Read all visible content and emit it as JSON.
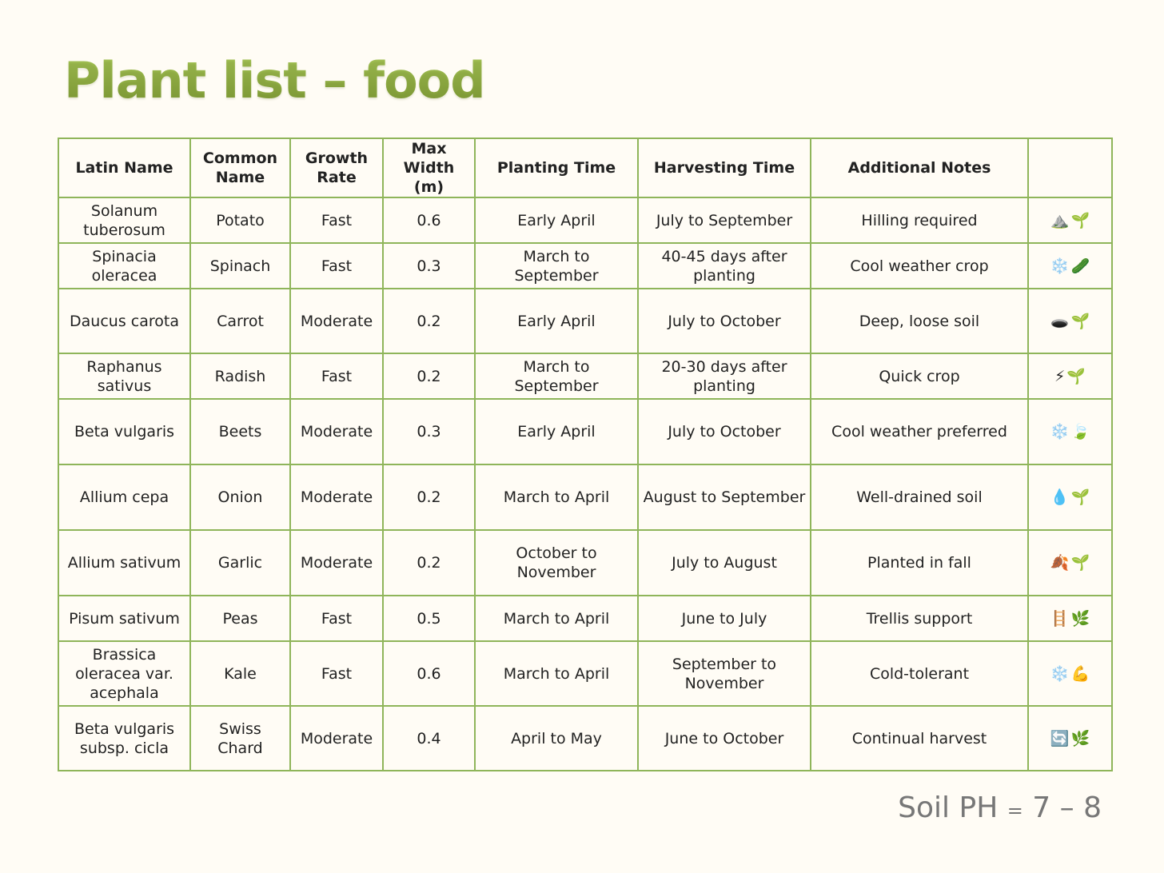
{
  "title": "Plant list – food",
  "headers": [
    {
      "line1": "Latin Name",
      "line2": ""
    },
    {
      "line1": "Common",
      "line2": "Name"
    },
    {
      "line1": "Growth",
      "line2": "Rate"
    },
    {
      "line1": "Max Width",
      "line2": "(m)"
    },
    {
      "line1": "Planting Time",
      "line2": ""
    },
    {
      "line1": "Harvesting Time",
      "line2": ""
    },
    {
      "line1": "Additional Notes",
      "line2": ""
    },
    {
      "line1": "",
      "line2": ""
    }
  ],
  "rows": [
    {
      "latin": "Solanum tuberosum",
      "common": "Potato",
      "growth": "Fast",
      "width": "0.6",
      "planting": "Early April",
      "harvesting": "July to September",
      "notes": "Hilling required",
      "icons": [
        "⛰️",
        "🌱"
      ]
    },
    {
      "latin": "Spinacia oleracea",
      "common": "Spinach",
      "growth": "Fast",
      "width": "0.3",
      "planting": "March to September",
      "harvesting": "40-45 days after planting",
      "notes": "Cool weather crop",
      "icons": [
        "❄️",
        "🥒"
      ]
    },
    {
      "latin": "Daucus carota",
      "common": "Carrot",
      "growth": "Moderate",
      "width": "0.2",
      "planting": "Early April",
      "harvesting": "July to October",
      "notes": "Deep, loose soil",
      "icons": [
        "🕳️",
        "🌱"
      ]
    },
    {
      "latin": "Raphanus sativus",
      "common": "Radish",
      "growth": "Fast",
      "width": "0.2",
      "planting": "March to September",
      "harvesting": "20-30 days after planting",
      "notes": "Quick crop",
      "icons": [
        "⚡",
        "🌱"
      ]
    },
    {
      "latin": "Beta vulgaris",
      "common": "Beets",
      "growth": "Moderate",
      "width": "0.3",
      "planting": "Early April",
      "harvesting": "July to October",
      "notes": "Cool weather preferred",
      "icons": [
        "❄️",
        "🍃"
      ]
    },
    {
      "latin": "Allium cepa",
      "common": "Onion",
      "growth": "Moderate",
      "width": "0.2",
      "planting": "March to April",
      "harvesting": "August to September",
      "notes": "Well-drained soil",
      "icons": [
        "💧",
        "🌱"
      ]
    },
    {
      "latin": "Allium sativum",
      "common": "Garlic",
      "growth": "Moderate",
      "width": "0.2",
      "planting": "October to November",
      "harvesting": "July to August",
      "notes": "Planted in fall",
      "icons": [
        "🍂",
        "🌱"
      ]
    },
    {
      "latin": "Pisum sativum",
      "common": "Peas",
      "growth": "Fast",
      "width": "0.5",
      "planting": "March to April",
      "harvesting": "June to July",
      "notes": "Trellis support",
      "icons": [
        "🪜",
        "🌿"
      ]
    },
    {
      "latin": "Brassica oleracea var. acephala",
      "common": "Kale",
      "growth": "Fast",
      "width": "0.6",
      "planting": "March to April",
      "harvesting": "September to November",
      "notes": "Cold-tolerant",
      "icons": [
        "❄️",
        "💪"
      ]
    },
    {
      "latin": "Beta vulgaris subsp. cicla",
      "common": "Swiss Chard",
      "growth": "Moderate",
      "width": "0.4",
      "planting": "April to May",
      "harvesting": "June to October",
      "notes": "Continual harvest",
      "icons": [
        "🔄",
        "🌿"
      ]
    }
  ],
  "footer": {
    "label": "Soil PH",
    "eq": "=",
    "value": "7 – 8"
  }
}
